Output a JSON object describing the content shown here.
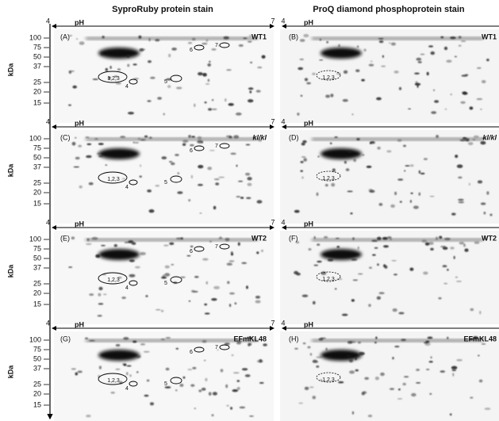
{
  "columns": [
    "SyproRuby protein stain",
    "ProQ diamond phosphoprotein stain"
  ],
  "axes": {
    "ph_label": "pH",
    "ph_min": "4",
    "ph_max": "7",
    "mw_label": "kDa",
    "mw_ticks": [
      "100",
      "75",
      "50",
      "37",
      "25",
      "20",
      "15"
    ]
  },
  "rows": [
    {
      "left": {
        "panel": "(A)",
        "strain": "WT1",
        "spots": [
          "1,2,3",
          "4",
          "5",
          "6",
          "7"
        ]
      },
      "right": {
        "panel": "(B)",
        "strain": "WT1",
        "spots": [
          "1,2,3"
        ]
      }
    },
    {
      "left": {
        "panel": "(C)",
        "strain": "kl/kl",
        "spots": [
          "1,2,3",
          "4",
          "5",
          "6",
          "7"
        ]
      },
      "right": {
        "panel": "(D)",
        "strain": "kl/kl",
        "spots": [
          "1,2,3"
        ]
      }
    },
    {
      "left": {
        "panel": "(E)",
        "strain": "WT2",
        "spots": [
          "1,2,3",
          "4",
          "5",
          "6",
          "7"
        ]
      },
      "right": {
        "panel": "(F)",
        "strain": "WT2",
        "spots": [
          "1,2,3"
        ]
      }
    },
    {
      "left": {
        "panel": "(G)",
        "strain": "EFmKL48",
        "spots": [
          "1,2,3",
          "4",
          "5",
          "6",
          "7"
        ]
      },
      "right": {
        "panel": "(H)",
        "strain": "EFmKL48",
        "spots": [
          "1,2,3"
        ]
      }
    }
  ]
}
